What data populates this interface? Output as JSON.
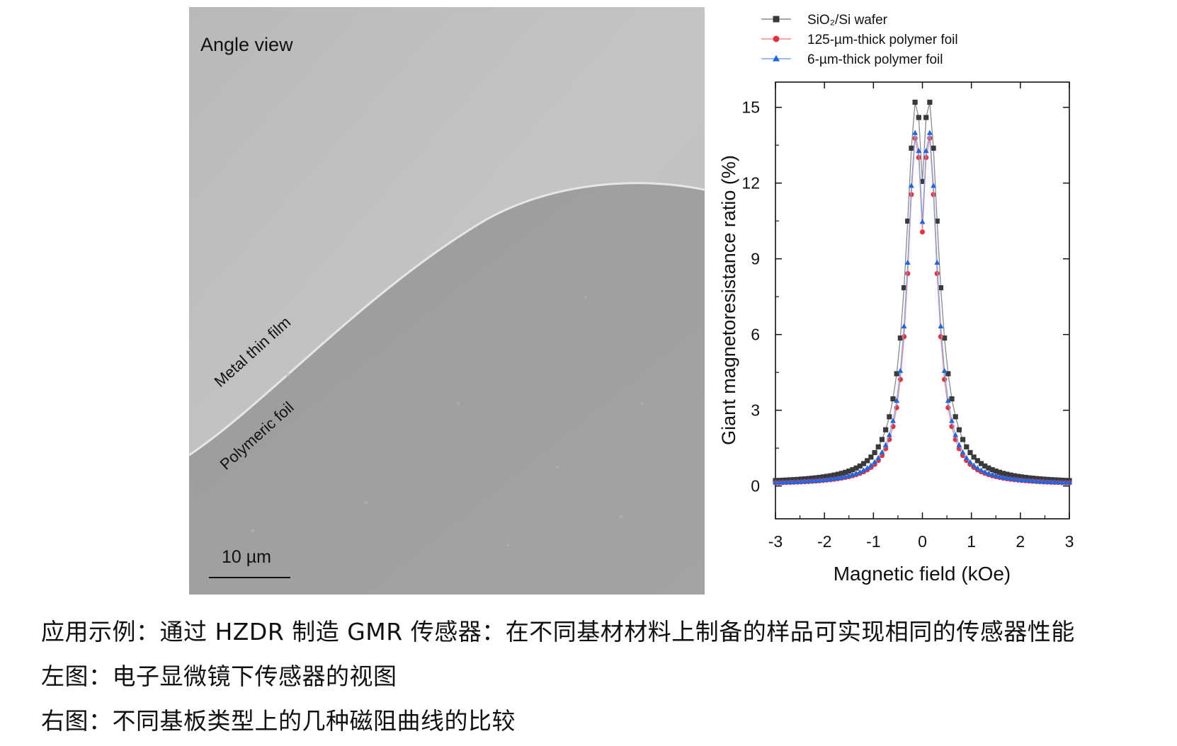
{
  "sem_image": {
    "title": "Angle view",
    "film_label": "Metal thin film",
    "foil_label": "Polymeric foil",
    "scale_label": "10 µm"
  },
  "chart_data": {
    "type": "scatter",
    "xlabel": "Magnetic field (kOe)",
    "ylabel": "Giant magnetoresistance ratio (%)",
    "xlim": [
      -3,
      3
    ],
    "ylim": [
      -1.3,
      16
    ],
    "xticks": [
      -3,
      -2,
      -1,
      0,
      1,
      2,
      3
    ],
    "yticks": [
      0,
      3,
      6,
      9,
      12,
      15
    ],
    "legend_position": "top",
    "grid": false,
    "series": [
      {
        "name": "SiO₂/Si wafer",
        "marker": "square",
        "color": "#3a3a3a",
        "line_color": "#8a8a8a",
        "peak_x": 0.13,
        "peak_y": 15.3,
        "gamma": 0.25,
        "baseline": 0.1
      },
      {
        "name": "125-µm-thick polymer foil",
        "marker": "circle",
        "color": "#e8333e",
        "line_color": "#f08a8f",
        "peak_x": 0.13,
        "peak_y": 13.9,
        "gamma": 0.21,
        "baseline": 0.05
      },
      {
        "name": "6-µm-thick polymer foil",
        "marker": "triangle",
        "color": "#1f66e0",
        "line_color": "#7fa6ec",
        "peak_x": 0.13,
        "peak_y": 14.1,
        "gamma": 0.22,
        "baseline": 0.05
      }
    ]
  },
  "captions": {
    "line1": "应用示例：通过 HZDR 制造 GMR 传感器：在不同基材材料上制备的样品可实现相同的传感器性能",
    "line2": "左图：电子显微镜下传感器的视图",
    "line3": "右图：不同基板类型上的几种磁阻曲线的比较"
  }
}
